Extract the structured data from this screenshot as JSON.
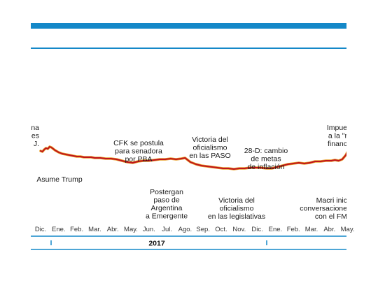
{
  "chart_data": {
    "type": "line",
    "title": "",
    "xlabel": "",
    "ylabel": "",
    "year_label": "2017",
    "months": [
      "Dic.",
      "Ene.",
      "Feb.",
      "Mar.",
      "Abr.",
      "May.",
      "Jun.",
      "Jul.",
      "Ago.",
      "Sep.",
      "Oct.",
      "Nov.",
      "Dic.",
      "Ene.",
      "Feb.",
      "Mar.",
      "Abr.",
      "May."
    ],
    "annotations": [
      {
        "id": "ann-left-cut",
        "lines": [
          "na",
          "es",
          "J."
        ]
      },
      {
        "id": "ann-trump",
        "lines": [
          "Asume Trump"
        ]
      },
      {
        "id": "ann-cfk",
        "lines": [
          "CFK se postula",
          "para senadora",
          "por PBA"
        ]
      },
      {
        "id": "ann-postergan",
        "lines": [
          "Postergan",
          "paso de",
          "Argentina",
          "a Emergente"
        ]
      },
      {
        "id": "ann-paso",
        "lines": [
          "Victoria del",
          "oficialismo",
          "en las PASO"
        ]
      },
      {
        "id": "ann-legislativas",
        "lines": [
          "Victoria del",
          "oficialismo",
          "en las legislativas"
        ]
      },
      {
        "id": "ann-28d",
        "lines": [
          "28-D: cambio",
          "de metas",
          "de inflación"
        ]
      },
      {
        "id": "ann-macri",
        "lines": [
          "Macri inic",
          "conversacione",
          "con el FM"
        ]
      },
      {
        "id": "ann-impuesto",
        "lines": [
          "Impue",
          "a la \"r",
          "financ"
        ]
      }
    ],
    "series": [
      {
        "values": [
          [
            0,
            56
          ],
          [
            0.1,
            55
          ],
          [
            0.2,
            58
          ],
          [
            0.3,
            60
          ],
          [
            0.4,
            59
          ],
          [
            0.5,
            62
          ],
          [
            0.6,
            61
          ],
          [
            0.8,
            57
          ],
          [
            1.0,
            54
          ],
          [
            1.2,
            52
          ],
          [
            1.4,
            51
          ],
          [
            1.6,
            50
          ],
          [
            1.8,
            49
          ],
          [
            2.0,
            48
          ],
          [
            2.2,
            48
          ],
          [
            2.4,
            47
          ],
          [
            2.6,
            47
          ],
          [
            2.8,
            47
          ],
          [
            3.0,
            46
          ],
          [
            3.3,
            46
          ],
          [
            3.6,
            45
          ],
          [
            3.9,
            45
          ],
          [
            4.2,
            44
          ],
          [
            4.5,
            42
          ],
          [
            4.8,
            40
          ],
          [
            5.1,
            39
          ],
          [
            5.4,
            41
          ],
          [
            5.7,
            42
          ],
          [
            6.0,
            42
          ],
          [
            6.3,
            43
          ],
          [
            6.6,
            44
          ],
          [
            6.9,
            44
          ],
          [
            7.2,
            45
          ],
          [
            7.5,
            44
          ],
          [
            7.8,
            45
          ],
          [
            8.0,
            46
          ],
          [
            8.3,
            40
          ],
          [
            8.6,
            37
          ],
          [
            8.9,
            35
          ],
          [
            9.2,
            34
          ],
          [
            9.5,
            33
          ],
          [
            9.8,
            32
          ],
          [
            10.1,
            31
          ],
          [
            10.4,
            31
          ],
          [
            10.7,
            30
          ],
          [
            11.0,
            31
          ],
          [
            11.3,
            31
          ],
          [
            11.6,
            32
          ],
          [
            11.9,
            32
          ],
          [
            12.2,
            32
          ],
          [
            12.5,
            31
          ],
          [
            12.8,
            31
          ],
          [
            13.1,
            33
          ],
          [
            13.4,
            35
          ],
          [
            13.7,
            37
          ],
          [
            14.0,
            38
          ],
          [
            14.3,
            39
          ],
          [
            14.6,
            38
          ],
          [
            14.9,
            39
          ],
          [
            15.2,
            41
          ],
          [
            15.5,
            41
          ],
          [
            15.8,
            42
          ],
          [
            16.1,
            42
          ],
          [
            16.3,
            43
          ],
          [
            16.5,
            42
          ],
          [
            16.7,
            44
          ],
          [
            16.9,
            50
          ],
          [
            17.0,
            55
          ]
        ]
      }
    ],
    "colors": {
      "line": "#c0141c",
      "line_highlight": "#e8a02a",
      "accent": "#1488c8"
    }
  }
}
